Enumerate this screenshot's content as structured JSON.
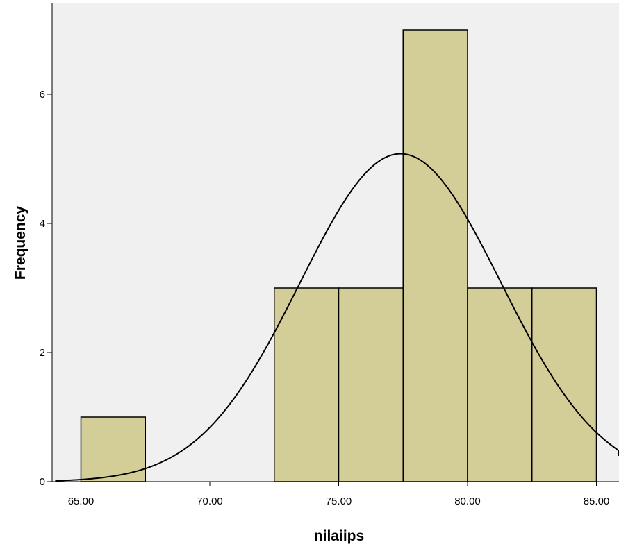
{
  "chart_data": {
    "type": "bar",
    "title": "",
    "xlabel": "nilaiips",
    "ylabel": "Frequency",
    "bins": [
      {
        "start": 65.0,
        "end": 67.5,
        "count": 1
      },
      {
        "start": 67.5,
        "end": 70.0,
        "count": 0
      },
      {
        "start": 70.0,
        "end": 72.5,
        "count": 0
      },
      {
        "start": 72.5,
        "end": 75.0,
        "count": 3
      },
      {
        "start": 75.0,
        "end": 77.5,
        "count": 3
      },
      {
        "start": 77.5,
        "end": 80.0,
        "count": 7
      },
      {
        "start": 80.0,
        "end": 82.5,
        "count": 3
      },
      {
        "start": 82.5,
        "end": 85.0,
        "count": 3
      }
    ],
    "x_ticks": [
      65,
      70,
      75,
      80,
      85
    ],
    "x_tick_labels": [
      "65.00",
      "70.00",
      "75.00",
      "80.00",
      "85.00"
    ],
    "y_ticks": [
      0,
      2,
      4,
      6
    ],
    "y_tick_labels": [
      "0",
      "2",
      "4",
      "6"
    ],
    "xlim": [
      64.0,
      86.0
    ],
    "ylim": [
      0,
      7.35
    ],
    "normal_curve": {
      "mean": 77.4,
      "peak": 5.08,
      "sd": 3.9
    },
    "grid": false,
    "colors": {
      "plot_background": "#f0f0f0",
      "bar_fill": "#d3ce97",
      "bar_stroke": "#000000",
      "curve": "#000000"
    }
  }
}
